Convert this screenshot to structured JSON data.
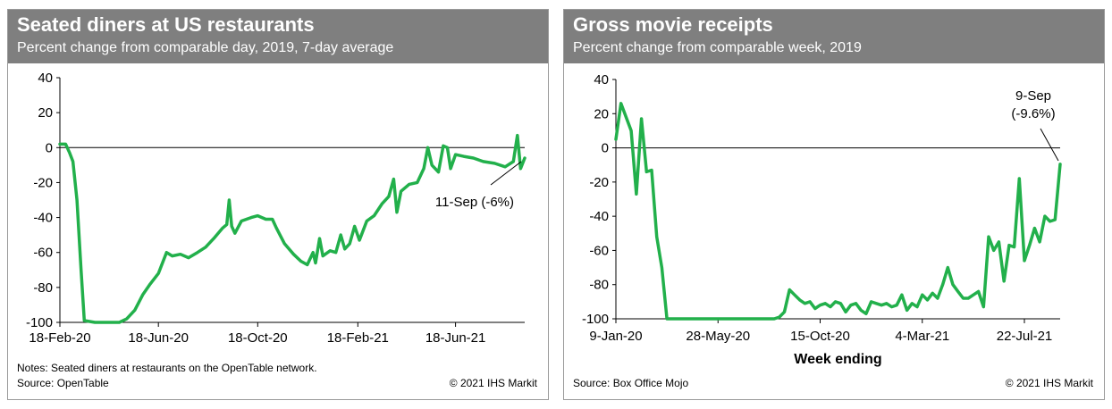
{
  "colors": {
    "header_bg": "#7f7f7f",
    "line": "#22b04b",
    "axis": "#000000"
  },
  "panel1": {
    "title": "Seated diners at US restaurants",
    "subtitle": "Percent change from comparable day, 2019, 7-day average",
    "notes": "Notes: Seated diners at restaurants on the OpenTable network.",
    "source": "Source: OpenTable",
    "copyright": "© 2021 IHS Markit"
  },
  "panel2": {
    "title": "Gross movie receipts",
    "subtitle": "Percent change from comparable week, 2019",
    "source": "Source: Box Office Mojo",
    "copyright": "© 2021 IHS Markit"
  },
  "chart_data": [
    {
      "type": "line",
      "title": "Seated diners at US restaurants",
      "subtitle": "Percent change from comparable day, 2019, 7-day average",
      "xlabel": "",
      "ylabel": "",
      "ylim": [
        -100,
        40
      ],
      "yticks": [
        40,
        20,
        0,
        -20,
        -40,
        -60,
        -80,
        -100
      ],
      "xlim": [
        "2020-02-18",
        "2021-09-11"
      ],
      "xticks": [
        {
          "date": "2020-02-18",
          "label": "18-Feb-20"
        },
        {
          "date": "2020-06-18",
          "label": "18-Jun-20"
        },
        {
          "date": "2020-10-18",
          "label": "18-Oct-20"
        },
        {
          "date": "2021-02-18",
          "label": "18-Feb-21"
        },
        {
          "date": "2021-06-18",
          "label": "18-Jun-21"
        }
      ],
      "grid": false,
      "legend": "none",
      "annotation": {
        "text": "11-Sep (-6%)",
        "date": "2021-09-11",
        "value": -6
      },
      "series": [
        {
          "values": [
            {
              "date": "2020-02-18",
              "value": 2
            },
            {
              "date": "2020-02-25",
              "value": 2
            },
            {
              "date": "2020-03-01",
              "value": -3
            },
            {
              "date": "2020-03-05",
              "value": -8
            },
            {
              "date": "2020-03-10",
              "value": -30
            },
            {
              "date": "2020-03-15",
              "value": -70
            },
            {
              "date": "2020-03-19",
              "value": -99
            },
            {
              "date": "2020-04-01",
              "value": -100
            },
            {
              "date": "2020-05-01",
              "value": -100
            },
            {
              "date": "2020-05-10",
              "value": -98
            },
            {
              "date": "2020-05-20",
              "value": -93
            },
            {
              "date": "2020-05-30",
              "value": -84
            },
            {
              "date": "2020-06-08",
              "value": -78
            },
            {
              "date": "2020-06-18",
              "value": -72
            },
            {
              "date": "2020-06-28",
              "value": -60
            },
            {
              "date": "2020-07-05",
              "value": -62
            },
            {
              "date": "2020-07-15",
              "value": -61
            },
            {
              "date": "2020-07-25",
              "value": -63
            },
            {
              "date": "2020-08-05",
              "value": -60
            },
            {
              "date": "2020-08-15",
              "value": -57
            },
            {
              "date": "2020-08-25",
              "value": -52
            },
            {
              "date": "2020-09-05",
              "value": -46
            },
            {
              "date": "2020-09-10",
              "value": -44
            },
            {
              "date": "2020-09-13",
              "value": -30
            },
            {
              "date": "2020-09-16",
              "value": -45
            },
            {
              "date": "2020-09-20",
              "value": -49
            },
            {
              "date": "2020-09-28",
              "value": -42
            },
            {
              "date": "2020-10-10",
              "value": -40
            },
            {
              "date": "2020-10-18",
              "value": -39
            },
            {
              "date": "2020-10-28",
              "value": -41
            },
            {
              "date": "2020-11-05",
              "value": -41
            },
            {
              "date": "2020-11-10",
              "value": -46
            },
            {
              "date": "2020-11-20",
              "value": -55
            },
            {
              "date": "2020-12-01",
              "value": -61
            },
            {
              "date": "2020-12-10",
              "value": -65
            },
            {
              "date": "2020-12-18",
              "value": -67
            },
            {
              "date": "2020-12-25",
              "value": -60
            },
            {
              "date": "2020-12-28",
              "value": -66
            },
            {
              "date": "2021-01-02",
              "value": -52
            },
            {
              "date": "2021-01-06",
              "value": -62
            },
            {
              "date": "2021-01-15",
              "value": -59
            },
            {
              "date": "2021-01-22",
              "value": -60
            },
            {
              "date": "2021-01-28",
              "value": -50
            },
            {
              "date": "2021-02-02",
              "value": -58
            },
            {
              "date": "2021-02-08",
              "value": -55
            },
            {
              "date": "2021-02-14",
              "value": -45
            },
            {
              "date": "2021-02-20",
              "value": -53
            },
            {
              "date": "2021-03-01",
              "value": -42
            },
            {
              "date": "2021-03-10",
              "value": -39
            },
            {
              "date": "2021-03-20",
              "value": -32
            },
            {
              "date": "2021-03-28",
              "value": -28
            },
            {
              "date": "2021-04-03",
              "value": -18
            },
            {
              "date": "2021-04-07",
              "value": -37
            },
            {
              "date": "2021-04-12",
              "value": -25
            },
            {
              "date": "2021-04-22",
              "value": -21
            },
            {
              "date": "2021-05-02",
              "value": -20
            },
            {
              "date": "2021-05-10",
              "value": -12
            },
            {
              "date": "2021-05-15",
              "value": 0
            },
            {
              "date": "2021-05-20",
              "value": -10
            },
            {
              "date": "2021-05-28",
              "value": -14
            },
            {
              "date": "2021-06-03",
              "value": 1
            },
            {
              "date": "2021-06-08",
              "value": 0
            },
            {
              "date": "2021-06-12",
              "value": -12
            },
            {
              "date": "2021-06-18",
              "value": -4
            },
            {
              "date": "2021-06-28",
              "value": -5
            },
            {
              "date": "2021-07-10",
              "value": -6
            },
            {
              "date": "2021-07-22",
              "value": -8
            },
            {
              "date": "2021-08-05",
              "value": -9
            },
            {
              "date": "2021-08-18",
              "value": -11
            },
            {
              "date": "2021-08-28",
              "value": -8
            },
            {
              "date": "2021-09-02",
              "value": 7
            },
            {
              "date": "2021-09-06",
              "value": -12
            },
            {
              "date": "2021-09-11",
              "value": -6
            }
          ]
        }
      ]
    },
    {
      "type": "line",
      "title": "Gross movie receipts",
      "subtitle": "Percent change from comparable week, 2019",
      "xlabel": "Week ending",
      "ylabel": "",
      "ylim": [
        -100,
        40
      ],
      "yticks": [
        40,
        20,
        0,
        -20,
        -40,
        -60,
        -80,
        -100
      ],
      "xlim": [
        "2020-01-09",
        "2021-09-09"
      ],
      "xticks": [
        {
          "date": "2020-01-09",
          "label": "9-Jan-20"
        },
        {
          "date": "2020-05-28",
          "label": "28-May-20"
        },
        {
          "date": "2020-10-15",
          "label": "15-Oct-20"
        },
        {
          "date": "2021-03-04",
          "label": "4-Mar-21"
        },
        {
          "date": "2021-07-22",
          "label": "22-Jul-21"
        }
      ],
      "grid": false,
      "legend": "none",
      "annotation": {
        "text_line1": "9-Sep",
        "text_line2": "(-9.6%)",
        "date": "2021-09-09",
        "value": -9.6
      },
      "series": [
        {
          "values": [
            {
              "date": "2020-01-09",
              "value": 5
            },
            {
              "date": "2020-01-16",
              "value": 26
            },
            {
              "date": "2020-01-23",
              "value": 18
            },
            {
              "date": "2020-01-30",
              "value": 10
            },
            {
              "date": "2020-02-06",
              "value": -27
            },
            {
              "date": "2020-02-13",
              "value": 17
            },
            {
              "date": "2020-02-20",
              "value": -14
            },
            {
              "date": "2020-02-27",
              "value": -13
            },
            {
              "date": "2020-03-05",
              "value": -52
            },
            {
              "date": "2020-03-12",
              "value": -70
            },
            {
              "date": "2020-03-19",
              "value": -100
            },
            {
              "date": "2020-04-09",
              "value": -100
            },
            {
              "date": "2020-06-04",
              "value": -100
            },
            {
              "date": "2020-08-13",
              "value": -100
            },
            {
              "date": "2020-08-20",
              "value": -99
            },
            {
              "date": "2020-08-27",
              "value": -96
            },
            {
              "date": "2020-09-03",
              "value": -83
            },
            {
              "date": "2020-09-10",
              "value": -86
            },
            {
              "date": "2020-09-17",
              "value": -89
            },
            {
              "date": "2020-09-24",
              "value": -91
            },
            {
              "date": "2020-10-01",
              "value": -90
            },
            {
              "date": "2020-10-08",
              "value": -94
            },
            {
              "date": "2020-10-15",
              "value": -92
            },
            {
              "date": "2020-10-22",
              "value": -91
            },
            {
              "date": "2020-10-29",
              "value": -93
            },
            {
              "date": "2020-11-05",
              "value": -90
            },
            {
              "date": "2020-11-12",
              "value": -91
            },
            {
              "date": "2020-11-19",
              "value": -96
            },
            {
              "date": "2020-11-26",
              "value": -92
            },
            {
              "date": "2020-12-03",
              "value": -91
            },
            {
              "date": "2020-12-10",
              "value": -95
            },
            {
              "date": "2020-12-17",
              "value": -97
            },
            {
              "date": "2020-12-24",
              "value": -90
            },
            {
              "date": "2020-12-31",
              "value": -91
            },
            {
              "date": "2021-01-07",
              "value": -92
            },
            {
              "date": "2021-01-14",
              "value": -91
            },
            {
              "date": "2021-01-21",
              "value": -93
            },
            {
              "date": "2021-01-28",
              "value": -92
            },
            {
              "date": "2021-02-04",
              "value": -86
            },
            {
              "date": "2021-02-11",
              "value": -95
            },
            {
              "date": "2021-02-18",
              "value": -91
            },
            {
              "date": "2021-02-25",
              "value": -93
            },
            {
              "date": "2021-03-04",
              "value": -86
            },
            {
              "date": "2021-03-11",
              "value": -89
            },
            {
              "date": "2021-03-18",
              "value": -85
            },
            {
              "date": "2021-03-25",
              "value": -88
            },
            {
              "date": "2021-04-01",
              "value": -80
            },
            {
              "date": "2021-04-08",
              "value": -70
            },
            {
              "date": "2021-04-15",
              "value": -80
            },
            {
              "date": "2021-04-22",
              "value": -84
            },
            {
              "date": "2021-04-29",
              "value": -88
            },
            {
              "date": "2021-05-06",
              "value": -88
            },
            {
              "date": "2021-05-13",
              "value": -86
            },
            {
              "date": "2021-05-20",
              "value": -84
            },
            {
              "date": "2021-05-27",
              "value": -93
            },
            {
              "date": "2021-06-03",
              "value": -52
            },
            {
              "date": "2021-06-10",
              "value": -60
            },
            {
              "date": "2021-06-17",
              "value": -55
            },
            {
              "date": "2021-06-24",
              "value": -78
            },
            {
              "date": "2021-07-01",
              "value": -57
            },
            {
              "date": "2021-07-08",
              "value": -58
            },
            {
              "date": "2021-07-15",
              "value": -18
            },
            {
              "date": "2021-07-22",
              "value": -66
            },
            {
              "date": "2021-07-29",
              "value": -57
            },
            {
              "date": "2021-08-05",
              "value": -47
            },
            {
              "date": "2021-08-12",
              "value": -55
            },
            {
              "date": "2021-08-19",
              "value": -40
            },
            {
              "date": "2021-08-26",
              "value": -43
            },
            {
              "date": "2021-09-02",
              "value": -42
            },
            {
              "date": "2021-09-09",
              "value": -9.6
            }
          ]
        }
      ]
    }
  ]
}
